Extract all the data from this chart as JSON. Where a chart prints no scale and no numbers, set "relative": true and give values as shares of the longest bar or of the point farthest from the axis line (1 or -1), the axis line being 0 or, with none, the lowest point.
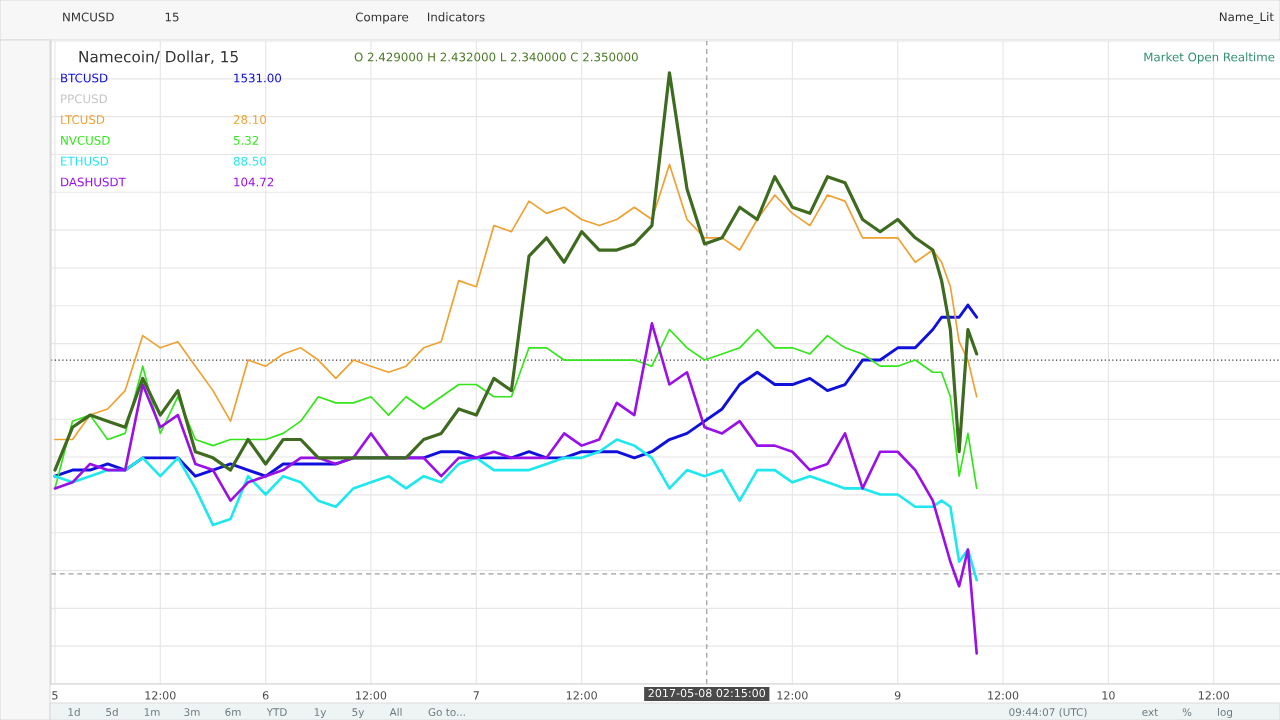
{
  "chart_data": {
    "type": "line",
    "title": "Namecoin/ Dollar, 15",
    "relative": true,
    "grid": true,
    "legend": "top left",
    "x": [
      "2017-05-05T00:00",
      "2017-05-05T02:00",
      "2017-05-05T04:00",
      "2017-05-05T06:00",
      "2017-05-05T08:00",
      "2017-05-05T10:00",
      "2017-05-05T12:00",
      "2017-05-05T14:00",
      "2017-05-05T16:00",
      "2017-05-05T18:00",
      "2017-05-05T20:00",
      "2017-05-05T22:00",
      "2017-05-06T00:00",
      "2017-05-06T02:00",
      "2017-05-06T04:00",
      "2017-05-06T06:00",
      "2017-05-06T08:00",
      "2017-05-06T10:00",
      "2017-05-06T12:00",
      "2017-05-06T14:00",
      "2017-05-06T16:00",
      "2017-05-06T18:00",
      "2017-05-06T20:00",
      "2017-05-06T22:00",
      "2017-05-07T00:00",
      "2017-05-07T02:00",
      "2017-05-07T04:00",
      "2017-05-07T06:00",
      "2017-05-07T08:00",
      "2017-05-07T10:00",
      "2017-05-07T12:00",
      "2017-05-07T14:00",
      "2017-05-07T16:00",
      "2017-05-07T18:00",
      "2017-05-07T20:00",
      "2017-05-07T22:00",
      "2017-05-08T00:00",
      "2017-05-08T02:00",
      "2017-05-08T04:00",
      "2017-05-08T06:00",
      "2017-05-08T08:00",
      "2017-05-08T10:00",
      "2017-05-08T12:00",
      "2017-05-08T14:00",
      "2017-05-08T16:00",
      "2017-05-08T18:00",
      "2017-05-08T20:00",
      "2017-05-08T22:00",
      "2017-05-09T00:00",
      "2017-05-09T02:00",
      "2017-05-09T04:00",
      "2017-05-09T05:00",
      "2017-05-09T06:00",
      "2017-05-09T07:00",
      "2017-05-09T08:00",
      "2017-05-09T09:00"
    ],
    "xlim": [
      "2017-05-04T23:33",
      "2017-05-10T19:33"
    ],
    "xticks": [
      {
        "value": "2017-05-05T00:00",
        "label": "5"
      },
      {
        "value": "2017-05-05T12:00",
        "label": "12:00"
      },
      {
        "value": "2017-05-06T00:00",
        "label": "6"
      },
      {
        "value": "2017-05-06T12:00",
        "label": "12:00"
      },
      {
        "value": "2017-05-07T00:00",
        "label": "7"
      },
      {
        "value": "2017-05-07T12:00",
        "label": "12:00"
      },
      {
        "value": "2017-05-08T12:00",
        "label": "12:00"
      },
      {
        "value": "2017-05-09T00:00",
        "label": "9"
      },
      {
        "value": "2017-05-09T12:00",
        "label": "12:00"
      },
      {
        "value": "2017-05-10T00:00",
        "label": "10"
      },
      {
        "value": "2017-05-10T12:00",
        "label": "12:00"
      }
    ],
    "series": [
      {
        "name": "BTCUSD",
        "color": "#1010dd",
        "values": [
          0.34,
          0.35,
          0.35,
          0.36,
          0.35,
          0.37,
          0.37,
          0.37,
          0.34,
          0.35,
          0.36,
          0.35,
          0.34,
          0.36,
          0.36,
          0.36,
          0.36,
          0.37,
          0.37,
          0.37,
          0.37,
          0.37,
          0.38,
          0.38,
          0.37,
          0.37,
          0.37,
          0.38,
          0.37,
          0.37,
          0.38,
          0.38,
          0.38,
          0.37,
          0.38,
          0.4,
          0.41,
          0.43,
          0.45,
          0.49,
          0.51,
          0.49,
          0.49,
          0.5,
          0.48,
          0.49,
          0.53,
          0.53,
          0.55,
          0.55,
          0.58,
          0.6,
          0.6,
          0.6,
          0.62,
          0.6
        ]
      },
      {
        "name": "LTCUSD",
        "color": "#f0a030",
        "values": [
          0.4,
          0.4,
          0.44,
          0.45,
          0.48,
          0.57,
          0.55,
          0.56,
          0.52,
          0.48,
          0.43,
          0.53,
          0.52,
          0.54,
          0.55,
          0.53,
          0.5,
          0.53,
          0.52,
          0.51,
          0.52,
          0.55,
          0.56,
          0.66,
          0.65,
          0.75,
          0.74,
          0.79,
          0.77,
          0.78,
          0.76,
          0.75,
          0.76,
          0.78,
          0.76,
          0.85,
          0.76,
          0.73,
          0.73,
          0.71,
          0.76,
          0.8,
          0.77,
          0.75,
          0.8,
          0.79,
          0.73,
          0.73,
          0.73,
          0.69,
          0.71,
          0.69,
          0.65,
          0.56,
          0.53,
          0.47
        ]
      },
      {
        "name": "NVCUSD",
        "color": "#33e61a",
        "values": [
          0.32,
          0.43,
          0.44,
          0.4,
          0.41,
          0.52,
          0.41,
          0.47,
          0.4,
          0.39,
          0.4,
          0.4,
          0.4,
          0.41,
          0.43,
          0.47,
          0.46,
          0.46,
          0.47,
          0.44,
          0.47,
          0.45,
          0.47,
          0.49,
          0.49,
          0.47,
          0.47,
          0.55,
          0.55,
          0.53,
          0.53,
          0.53,
          0.53,
          0.53,
          0.52,
          0.58,
          0.55,
          0.53,
          0.54,
          0.55,
          0.58,
          0.55,
          0.55,
          0.54,
          0.57,
          0.55,
          0.54,
          0.52,
          0.52,
          0.53,
          0.51,
          0.51,
          0.47,
          0.34,
          0.41,
          0.32
        ]
      },
      {
        "name": "ETHUSD",
        "color": "#1ee8ee",
        "values": [
          0.34,
          0.33,
          0.34,
          0.35,
          0.35,
          0.37,
          0.34,
          0.37,
          0.32,
          0.26,
          0.27,
          0.34,
          0.31,
          0.34,
          0.33,
          0.3,
          0.29,
          0.32,
          0.33,
          0.34,
          0.32,
          0.34,
          0.33,
          0.36,
          0.37,
          0.35,
          0.35,
          0.35,
          0.36,
          0.37,
          0.37,
          0.38,
          0.4,
          0.39,
          0.37,
          0.32,
          0.35,
          0.34,
          0.35,
          0.3,
          0.35,
          0.35,
          0.33,
          0.34,
          0.33,
          0.32,
          0.32,
          0.31,
          0.31,
          0.29,
          0.29,
          0.3,
          0.29,
          0.2,
          0.22,
          0.17
        ]
      },
      {
        "name": "DASHUSDT",
        "color": "#9a10e8",
        "values": [
          0.32,
          0.33,
          0.36,
          0.35,
          0.35,
          0.49,
          0.42,
          0.44,
          0.36,
          0.35,
          0.3,
          0.33,
          0.34,
          0.35,
          0.37,
          0.37,
          0.36,
          0.37,
          0.41,
          0.37,
          0.37,
          0.37,
          0.34,
          0.37,
          0.37,
          0.38,
          0.37,
          0.37,
          0.37,
          0.41,
          0.39,
          0.4,
          0.46,
          0.44,
          0.59,
          0.49,
          0.51,
          0.42,
          0.41,
          0.43,
          0.39,
          0.39,
          0.38,
          0.35,
          0.36,
          0.41,
          0.32,
          0.38,
          0.38,
          0.35,
          0.3,
          0.25,
          0.2,
          0.16,
          0.22,
          0.05
        ]
      },
      {
        "color": "#3e6b1f",
        "values": [
          0.35,
          0.42,
          0.44,
          0.43,
          0.42,
          0.5,
          0.44,
          0.48,
          0.38,
          0.37,
          0.35,
          0.4,
          0.36,
          0.4,
          0.4,
          0.37,
          0.37,
          0.37,
          0.37,
          0.37,
          0.37,
          0.4,
          0.41,
          0.45,
          0.44,
          0.5,
          0.48,
          0.7,
          0.73,
          0.69,
          0.74,
          0.71,
          0.71,
          0.72,
          0.75,
          1,
          0.81,
          0.72,
          0.73,
          0.78,
          0.76,
          0.83,
          0.78,
          0.77,
          0.83,
          0.82,
          0.76,
          0.74,
          0.76,
          0.73,
          0.71,
          0.66,
          0.58,
          0.38,
          0.58,
          0.54
        ]
      }
    ],
    "ref_lines": [
      {
        "axis": "x",
        "value": "2017-05-08T02:15",
        "color": "#9e9e9e",
        "line_style": "dashed"
      },
      {
        "axis": "y",
        "value": 0.53,
        "color": "#3a3a3a",
        "line_style": "dotted"
      },
      {
        "axis": "y",
        "value": 0.18,
        "color": "#9e9e9e",
        "line_style": "dashed"
      }
    ],
    "annotations": [
      "O 2.429000 H 2.432000 L 2.340000 C 2.350000",
      "Market Open Realtime",
      "PPCUSD",
      "1531.00",
      "28.10",
      "5.32",
      "88.50",
      "104.72",
      "NMCUSD",
      "15",
      "Compare",
      "Indicators",
      "Name_Lit",
      "1d",
      "5d",
      "1m",
      "3m",
      "6m",
      "YTD",
      "1y",
      "5y",
      "All",
      "Go to...",
      "09:44:07 (UTC)",
      "ext",
      "%",
      "log",
      "2017-05-08 02:15:00"
    ]
  }
}
